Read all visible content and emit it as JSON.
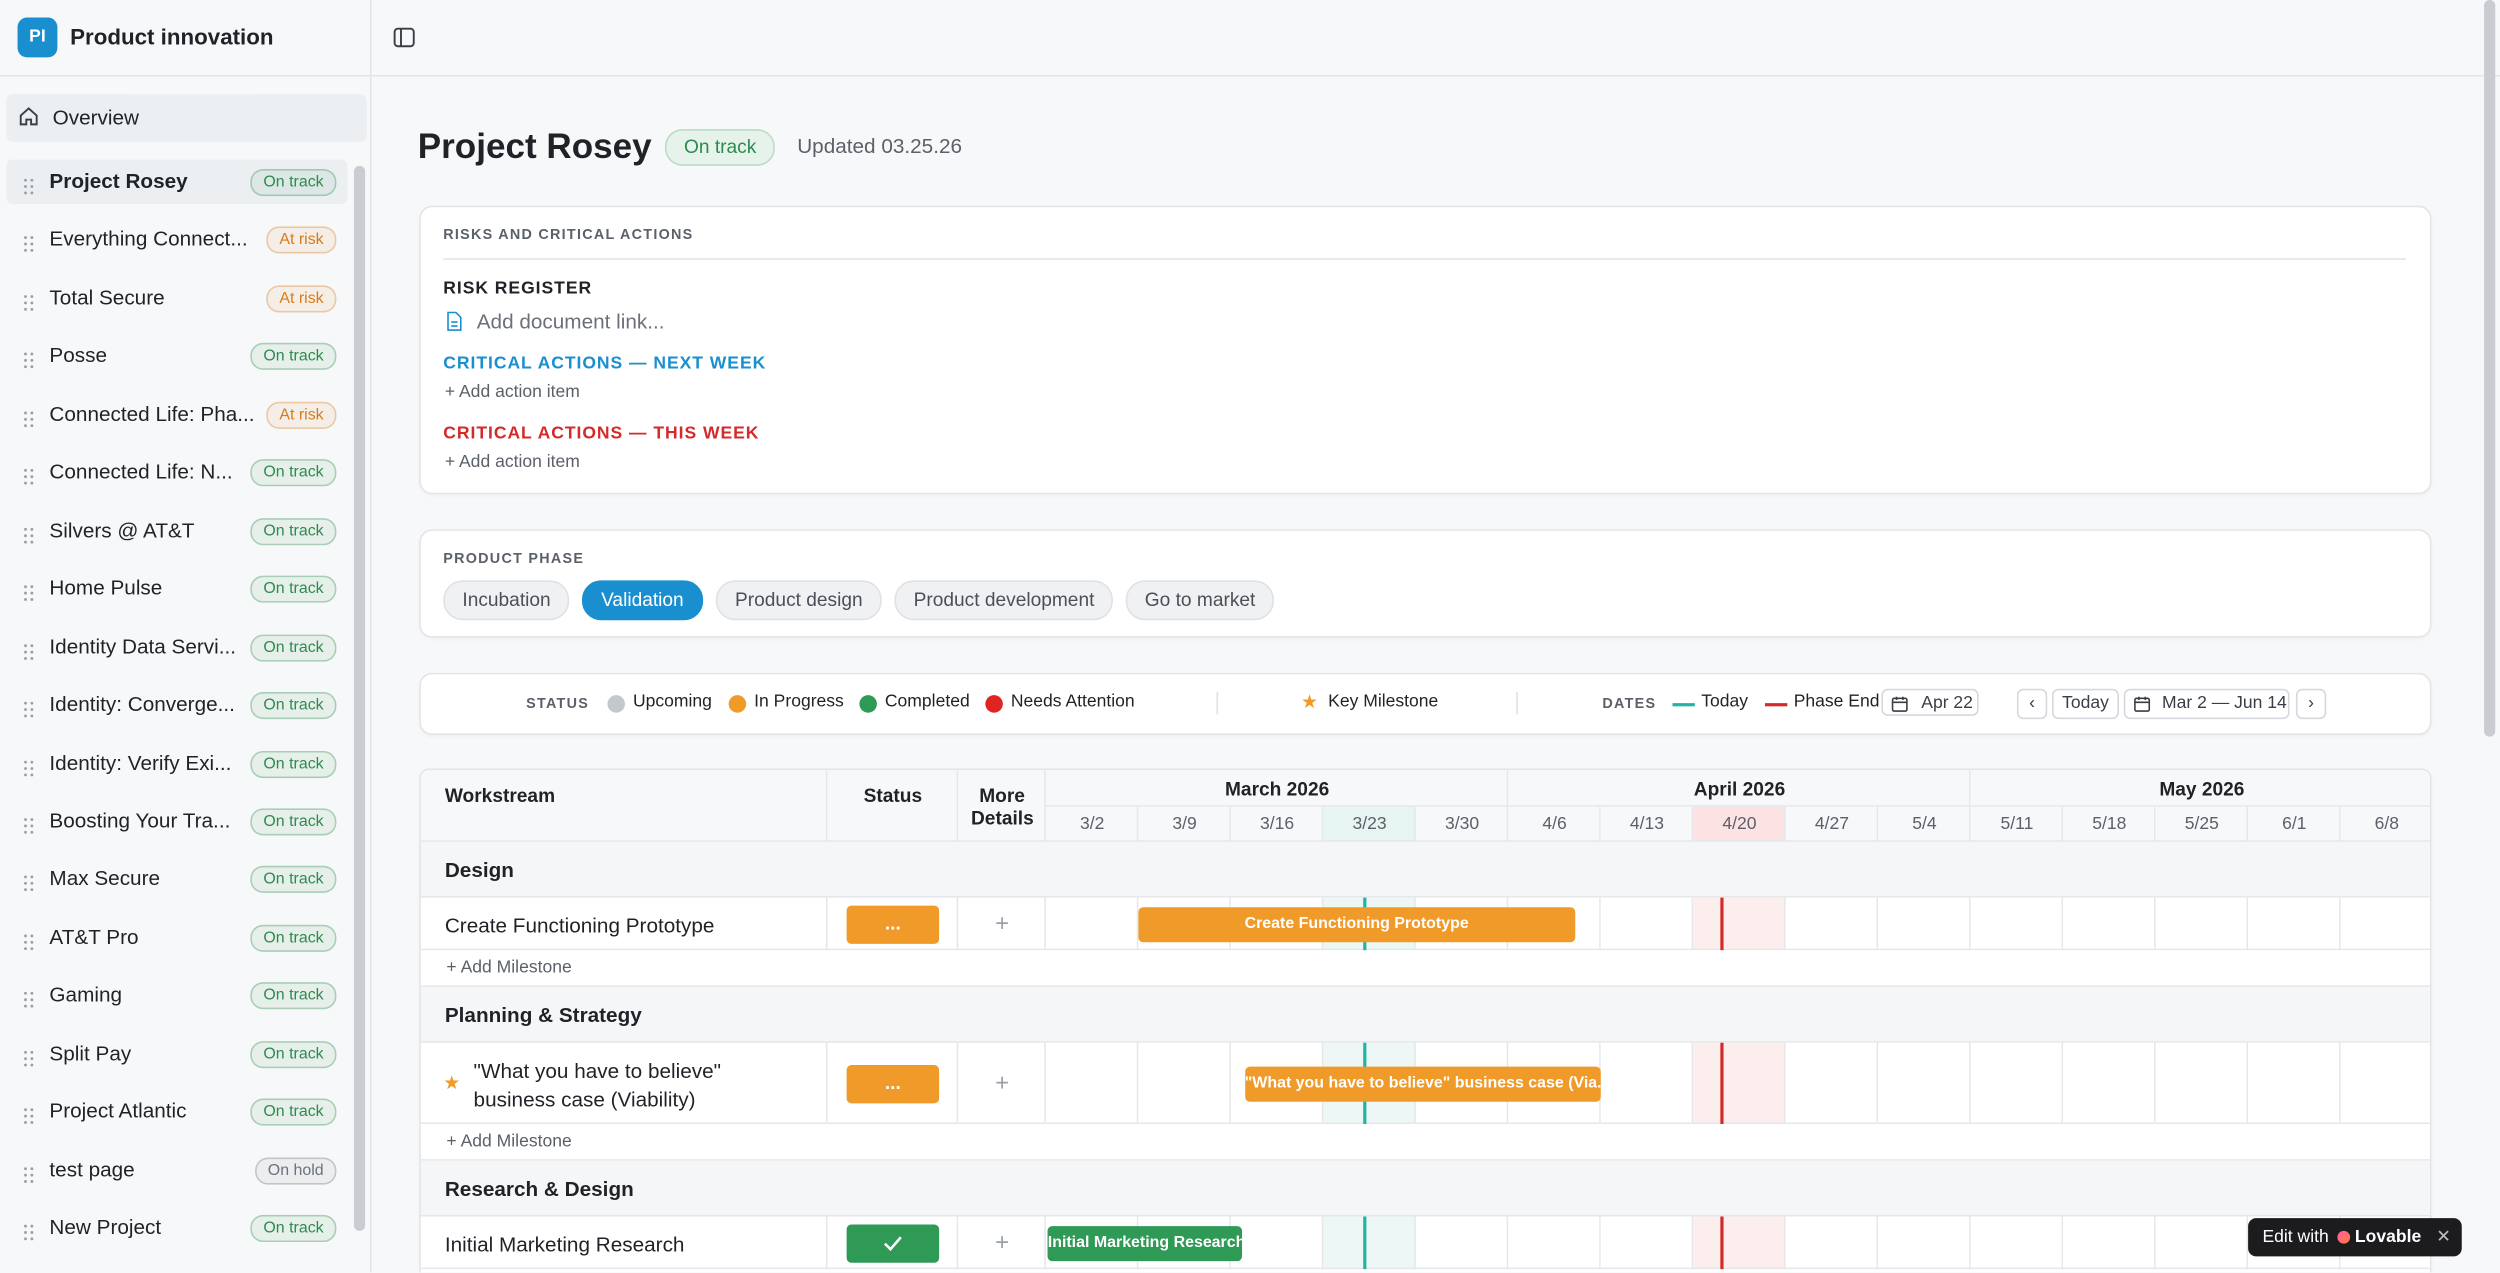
{
  "sidebar": {
    "initials": "PI",
    "workspace": "Product innovation",
    "overview": "Overview",
    "projects": [
      {
        "name": "Project Rosey",
        "status": "On track",
        "color": "#2e8b4e"
      },
      {
        "name": "Everything Connect...",
        "status": "At risk",
        "color": "#d97b1a"
      },
      {
        "name": "Total Secure",
        "status": "At risk",
        "color": "#d97b1a"
      },
      {
        "name": "Posse",
        "status": "On track",
        "color": "#2e8b4e"
      },
      {
        "name": "Connected Life: Pha...",
        "status": "At risk",
        "color": "#d97b1a"
      },
      {
        "name": "Connected Life: N...",
        "status": "On track",
        "color": "#2e8b4e"
      },
      {
        "name": "Silvers @ AT&T",
        "status": "On track",
        "color": "#2e8b4e"
      },
      {
        "name": "Home Pulse",
        "status": "On track",
        "color": "#2e8b4e"
      },
      {
        "name": "Identity Data Servi...",
        "status": "On track",
        "color": "#2e8b4e"
      },
      {
        "name": "Identity: Converge...",
        "status": "On track",
        "color": "#2e8b4e"
      },
      {
        "name": "Identity: Verify Exi...",
        "status": "On track",
        "color": "#2e8b4e"
      },
      {
        "name": "Boosting Your Tra...",
        "status": "On track",
        "color": "#2e8b4e"
      },
      {
        "name": "Max Secure",
        "status": "On track",
        "color": "#2e8b4e"
      },
      {
        "name": "AT&T Pro",
        "status": "On track",
        "color": "#2e8b4e"
      },
      {
        "name": "Gaming",
        "status": "On track",
        "color": "#2e8b4e"
      },
      {
        "name": "Split Pay",
        "status": "On track",
        "color": "#2e8b4e"
      },
      {
        "name": "Project Atlantic",
        "status": "On track",
        "color": "#2e8b4e"
      },
      {
        "name": "test page",
        "status": "On hold",
        "color": "#6b7280"
      },
      {
        "name": "New Project",
        "status": "On track",
        "color": "#2e8b4e"
      }
    ]
  },
  "header": {
    "title": "Project Rosey",
    "status": "On track",
    "updated": "Updated 03.25.26"
  },
  "risks": {
    "label": "RISKS AND CRITICAL ACTIONS",
    "register": "RISK REGISTER",
    "doc_link": "Add document link...",
    "next_week": {
      "title": "CRITICAL ACTIONS — NEXT WEEK",
      "add": "Add action item"
    },
    "this_week": {
      "title": "CRITICAL ACTIONS — THIS WEEK",
      "add": "Add action item"
    }
  },
  "phase": {
    "label": "PRODUCT PHASE",
    "phases": [
      "Incubation",
      "Validation",
      "Product design",
      "Product development",
      "Go to market"
    ],
    "active": 1
  },
  "legend": {
    "status_label": "STATUS",
    "statuses": [
      {
        "name": "Upcoming",
        "color": "#c4c7cc"
      },
      {
        "name": "In Progress",
        "color": "#f09a2a"
      },
      {
        "name": "Completed",
        "color": "#2e9a55"
      },
      {
        "name": "Needs Attention",
        "color": "#e02424"
      }
    ],
    "milestone": "Key Milestone",
    "dates_label": "DATES",
    "today": "Today",
    "phase_end": "Phase End",
    "phase_end_date": "Apr 22",
    "today_button": "Today",
    "range": "Mar 2 — Jun 14"
  },
  "gantt": {
    "headers": {
      "workstream": "Workstream",
      "status": "Status",
      "details": "More Details"
    },
    "months": [
      "March 2026",
      "April 2026",
      "May 2026"
    ],
    "weeks": [
      "3/2",
      "3/9",
      "3/16",
      "3/23",
      "3/30",
      "4/6",
      "4/13",
      "4/20",
      "4/27",
      "5/4",
      "5/11",
      "5/18",
      "5/25",
      "6/1",
      "6/8"
    ],
    "groups": [
      {
        "name": "Design",
        "tasks": [
          {
            "name": "Create Functioning Prototype",
            "status": "...",
            "bar": "Create Functioning Prototype",
            "color": "#f09a2a"
          }
        ],
        "add": "Add Milestone"
      },
      {
        "name": "Planning & Strategy",
        "tasks": [
          {
            "name": "\"What you have to believe\" business case (Viability)",
            "status": "...",
            "bar": "\"What you have to believe\" business case (Via...",
            "color": "#f09a2a",
            "key_milestone": true
          }
        ],
        "add": "Add Milestone"
      },
      {
        "name": "Research & Design",
        "tasks": [
          {
            "name": "Initial Marketing Research",
            "bar": "Initial Marketing Research",
            "color": "#2e9a55"
          }
        ]
      }
    ]
  },
  "badge": {
    "text": "Edit with",
    "brand": "Lovable"
  }
}
